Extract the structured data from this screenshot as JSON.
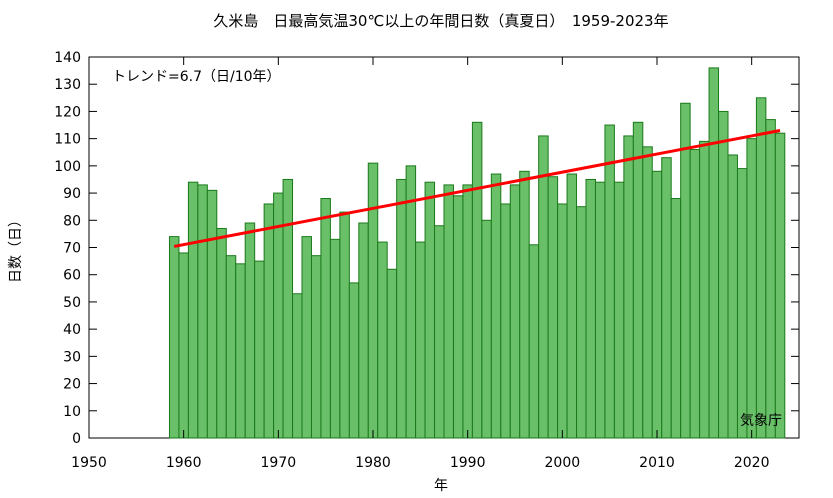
{
  "chart_data": {
    "type": "bar",
    "title": "久米島　日最高気温30℃以上の年間日数（真夏日）　1959-2023年",
    "xlabel": "年",
    "ylabel": "日数（日）",
    "trend_label": "トレンド=6.7（日/10年）",
    "source_label": "気象庁",
    "xlim": [
      1950,
      2025
    ],
    "ylim": [
      0,
      140
    ],
    "x_ticks": [
      1950,
      1960,
      1970,
      1980,
      1990,
      2000,
      2010,
      2020
    ],
    "y_ticks": [
      0,
      10,
      20,
      30,
      40,
      50,
      60,
      70,
      80,
      90,
      100,
      110,
      120,
      130,
      140
    ],
    "x": [
      1959,
      1960,
      1961,
      1962,
      1963,
      1964,
      1965,
      1966,
      1967,
      1968,
      1969,
      1970,
      1971,
      1972,
      1973,
      1974,
      1975,
      1976,
      1977,
      1978,
      1979,
      1980,
      1981,
      1982,
      1983,
      1984,
      1985,
      1986,
      1987,
      1988,
      1989,
      1990,
      1991,
      1992,
      1993,
      1994,
      1995,
      1996,
      1997,
      1998,
      1999,
      2000,
      2001,
      2002,
      2003,
      2004,
      2005,
      2006,
      2007,
      2008,
      2009,
      2010,
      2011,
      2012,
      2013,
      2014,
      2015,
      2016,
      2017,
      2018,
      2019,
      2020,
      2021,
      2022,
      2023
    ],
    "values": [
      74,
      68,
      94,
      93,
      91,
      77,
      67,
      64,
      79,
      65,
      86,
      90,
      95,
      53,
      74,
      67,
      88,
      73,
      83,
      57,
      79,
      101,
      72,
      62,
      95,
      100,
      72,
      94,
      78,
      93,
      89,
      93,
      116,
      80,
      97,
      86,
      93,
      98,
      71,
      111,
      96,
      86,
      97,
      85,
      95,
      94,
      115,
      94,
      111,
      116,
      107,
      98,
      103,
      88,
      123,
      106,
      109,
      136,
      120,
      104,
      99,
      110,
      125,
      117,
      112
    ],
    "trend": {
      "x": [
        1959,
        2023
      ],
      "y": [
        70.4,
        113.0
      ]
    },
    "colors": {
      "bar_fill": "#6abf69",
      "bar_stroke": "#1a7a1a",
      "trend": "#ff0000"
    },
    "grid": false,
    "legend": "none"
  }
}
